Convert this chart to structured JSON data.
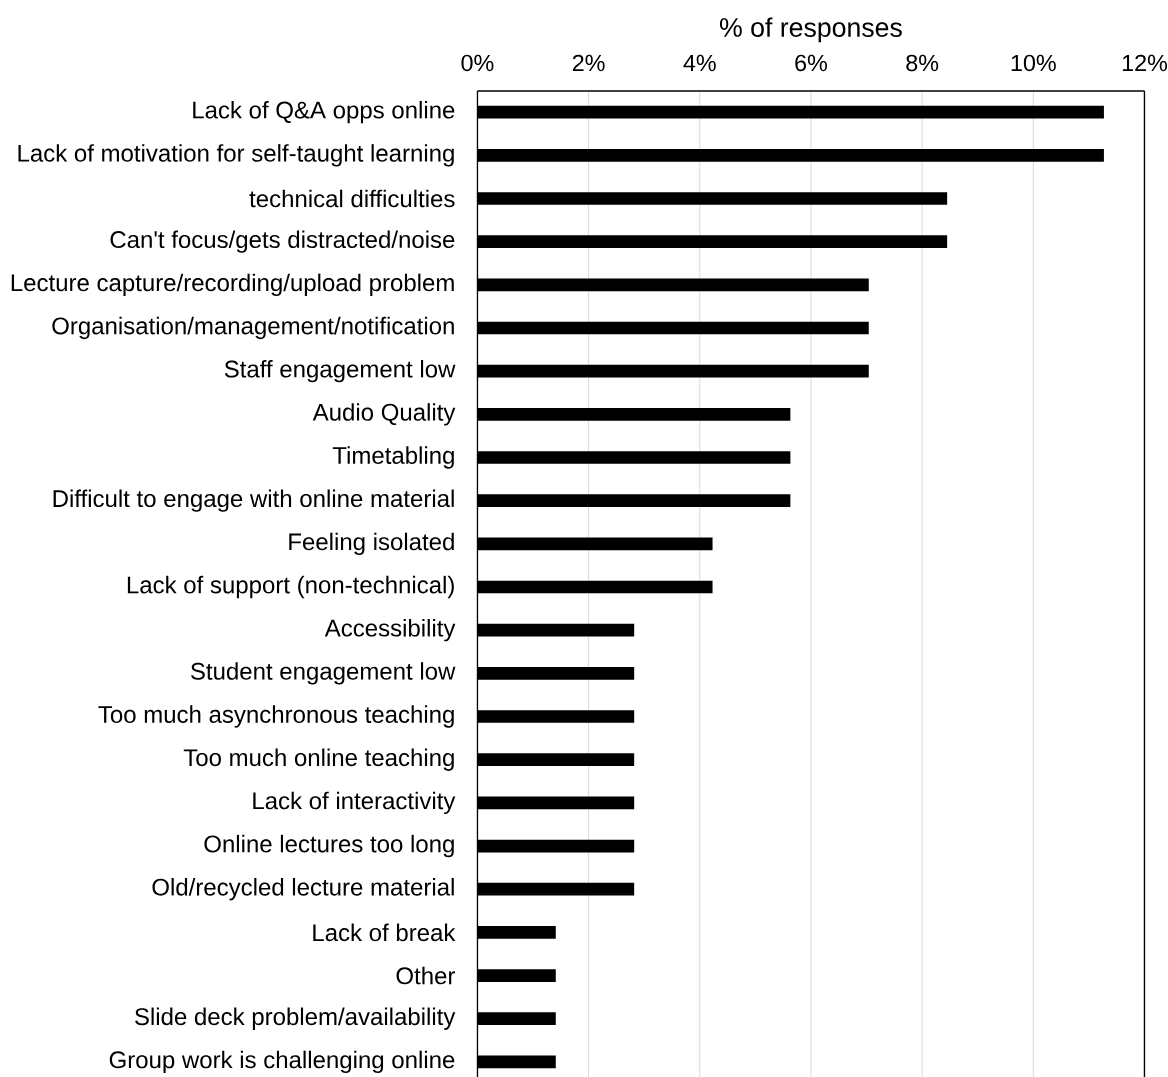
{
  "chart_data": {
    "type": "bar",
    "orientation": "horizontal",
    "xlabel": "% of responses",
    "categories": [
      "Lack of Q&A opps online",
      "Lack of motivation for self-taught learning",
      "technical difficulties",
      "Can't focus/gets distracted/noise",
      "Lecture capture/recording/upload problem",
      "Organisation/management/notification",
      "Staff engagement low",
      "Audio Quality",
      "Timetabling",
      "Difficult to engage with online material",
      "Feeling isolated",
      "Lack of support (non-technical)",
      "Accessibility",
      "Student engagement low",
      "Too much asynchronous teaching",
      "Too much online teaching",
      "Lack of interactivity",
      "Online lectures too long",
      "Old/recycled lecture material",
      "Lack of break",
      "Other",
      "Slide deck problem/availability",
      "Group work is challenging online"
    ],
    "values": [
      11.27,
      11.27,
      8.45,
      8.45,
      7.04,
      7.04,
      7.04,
      5.63,
      5.63,
      5.63,
      4.23,
      4.23,
      2.82,
      2.82,
      2.82,
      2.82,
      2.82,
      2.82,
      2.82,
      1.41,
      1.41,
      1.41,
      1.41
    ],
    "color": "#000000",
    "xlim": [
      0,
      12
    ],
    "xticks": [
      {
        "value": 0,
        "label": "0%"
      },
      {
        "value": 2,
        "label": "2%"
      },
      {
        "value": 4,
        "label": "4%"
      },
      {
        "value": 6,
        "label": "6%"
      },
      {
        "value": 8,
        "label": "8%"
      },
      {
        "value": 10,
        "label": "10%"
      },
      {
        "value": 12,
        "label": "12%"
      }
    ],
    "grid": "x"
  }
}
